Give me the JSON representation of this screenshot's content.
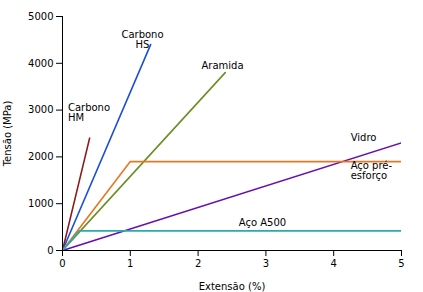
{
  "chart_data": {
    "type": "line",
    "xlabel": "Extensão (%)",
    "ylabel": "Tensão (MPa)",
    "xlim": [
      0,
      5
    ],
    "ylim": [
      0,
      5000
    ],
    "xticks": [
      0,
      1,
      2,
      3,
      4,
      5
    ],
    "yticks": [
      0,
      1000,
      2000,
      3000,
      4000,
      5000
    ],
    "grid": false,
    "series": [
      {
        "color": "#8B1A1A",
        "x": [
          0,
          0.4
        ],
        "values": [
          0,
          2400
        ]
      },
      {
        "color": "#1B4FD8",
        "x": [
          0,
          1.3
        ],
        "values": [
          0,
          4400
        ]
      },
      {
        "color": "#6B8E23",
        "x": [
          0,
          2.4
        ],
        "values": [
          0,
          3800
        ]
      },
      {
        "color": "#6A0DAD",
        "x": [
          0,
          5
        ],
        "values": [
          0,
          2300
        ]
      },
      {
        "color": "#E87722",
        "x": [
          0,
          1.0,
          5
        ],
        "values": [
          0,
          1900,
          1900
        ]
      },
      {
        "color": "#29ABB0",
        "x": [
          0,
          0.25,
          5
        ],
        "values": [
          0,
          420,
          420
        ]
      }
    ],
    "annotations": [
      {
        "text": "Carbono\nHM",
        "x": 0.08,
        "y": 2950
      },
      {
        "text": "Carbono\nHS",
        "x": 1.18,
        "y": 4700
      },
      {
        "text": "Aramida",
        "x": 2.05,
        "y": 3950
      },
      {
        "text": "Vidro",
        "x": 4.25,
        "y": 2400
      },
      {
        "text": "Aço pré-\nesforço",
        "x": 4.25,
        "y": 1700
      },
      {
        "text": "Aço A500",
        "x": 2.6,
        "y": 600
      }
    ]
  }
}
